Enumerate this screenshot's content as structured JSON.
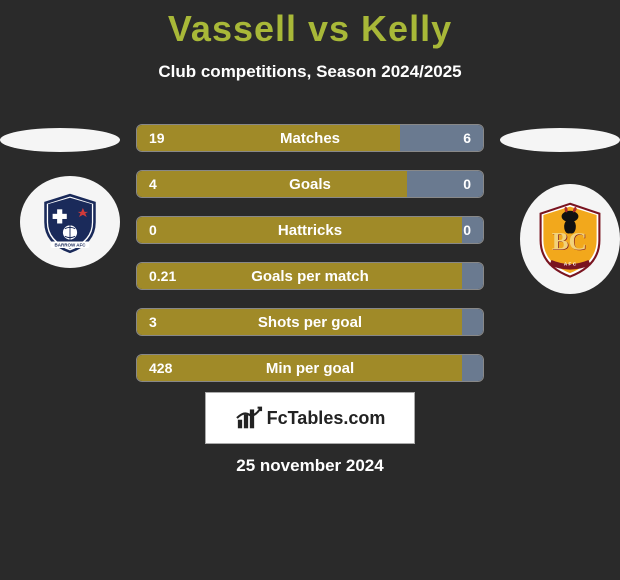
{
  "title": "Vassell vs Kelly",
  "subtitle": "Club competitions, Season 2024/2025",
  "date": "25 november 2024",
  "fctables_label": "FcTables.com",
  "colors": {
    "accent": "#a8b838",
    "bar_left": "#a08a28",
    "bar_right": "#6a7a90",
    "highlight": "#ffffff"
  },
  "stats": [
    {
      "label": "Matches",
      "left_val": "19",
      "right_val": "6",
      "left_pct": 76,
      "right_pct": 24
    },
    {
      "label": "Goals",
      "left_val": "4",
      "right_val": "0",
      "left_pct": 78,
      "right_pct": 22
    },
    {
      "label": "Hattricks",
      "left_val": "0",
      "right_val": "0",
      "left_pct": 94,
      "right_pct": 6
    },
    {
      "label": "Goals per match",
      "left_val": "0.21",
      "right_val": "",
      "left_pct": 94,
      "right_pct": 6
    },
    {
      "label": "Shots per goal",
      "left_val": "3",
      "right_val": "",
      "left_pct": 94,
      "right_pct": 6
    },
    {
      "label": "Min per goal",
      "left_val": "428",
      "right_val": "",
      "left_pct": 94,
      "right_pct": 6
    }
  ]
}
